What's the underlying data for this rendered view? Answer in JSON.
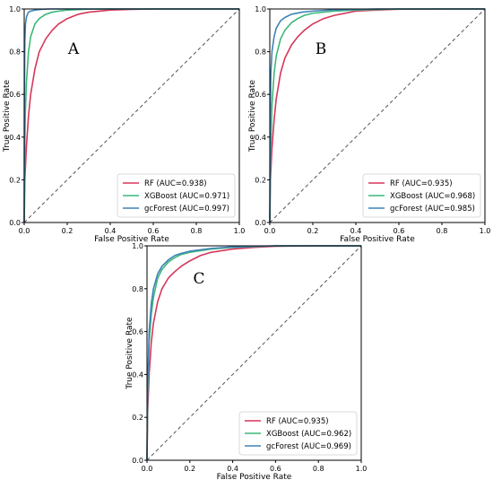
{
  "chart_data": [
    {
      "type": "line",
      "panel_label": "A",
      "xlabel": "False Positive Rate",
      "ylabel": "True Positive Rate",
      "xlim": [
        0,
        1
      ],
      "ylim": [
        0,
        1
      ],
      "xticks": [
        "0.0",
        "0.2",
        "0.4",
        "0.6",
        "0.8",
        "1.0"
      ],
      "yticks": [
        "0.0",
        "0.2",
        "0.4",
        "0.6",
        "0.8",
        "1.0"
      ],
      "legend_placement": "lower-right",
      "grid": false,
      "diagonal": true,
      "series": [
        {
          "name": "RF (AUC=0.938)",
          "color": "#d6365a",
          "x": [
            0,
            0.003,
            0.01,
            0.02,
            0.03,
            0.05,
            0.07,
            0.1,
            0.13,
            0.16,
            0.2,
            0.25,
            0.3,
            0.4,
            0.5,
            0.6,
            0.8,
            1.0
          ],
          "y": [
            0,
            0.2,
            0.35,
            0.5,
            0.6,
            0.72,
            0.8,
            0.86,
            0.9,
            0.93,
            0.955,
            0.975,
            0.985,
            0.995,
            0.998,
            1.0,
            1.0,
            1.0
          ]
        },
        {
          "name": "XGBoost (AUC=0.971)",
          "color": "#3cb77a",
          "x": [
            0,
            0.002,
            0.005,
            0.01,
            0.02,
            0.03,
            0.05,
            0.07,
            0.1,
            0.13,
            0.16,
            0.2,
            0.3,
            0.4,
            0.6,
            1.0
          ],
          "y": [
            0,
            0.3,
            0.5,
            0.65,
            0.8,
            0.87,
            0.93,
            0.955,
            0.975,
            0.985,
            0.99,
            0.995,
            0.999,
            1.0,
            1.0,
            1.0
          ]
        },
        {
          "name": "gcForest (AUC=0.997)",
          "color": "#3f83b8",
          "x": [
            0,
            0.001,
            0.003,
            0.006,
            0.01,
            0.015,
            0.02,
            0.03,
            0.05,
            0.08,
            0.12,
            0.2,
            0.4,
            1.0
          ],
          "y": [
            0,
            0.6,
            0.85,
            0.93,
            0.96,
            0.975,
            0.985,
            0.99,
            0.995,
            0.998,
            1.0,
            1.0,
            1.0,
            1.0
          ]
        }
      ]
    },
    {
      "type": "line",
      "panel_label": "B",
      "xlabel": "False Positive Rate",
      "ylabel": "True Positive Rate",
      "xlim": [
        0,
        1
      ],
      "ylim": [
        0,
        1
      ],
      "xticks": [
        "0.0",
        "0.2",
        "0.4",
        "0.6",
        "0.8",
        "1.0"
      ],
      "yticks": [
        "0.0",
        "0.2",
        "0.4",
        "0.6",
        "0.8",
        "1.0"
      ],
      "legend_placement": "lower-right",
      "grid": false,
      "diagonal": true,
      "series": [
        {
          "name": "RF (AUC=0.935)",
          "color": "#d6365a",
          "x": [
            0,
            0.003,
            0.01,
            0.02,
            0.03,
            0.05,
            0.07,
            0.1,
            0.13,
            0.16,
            0.2,
            0.25,
            0.3,
            0.4,
            0.5,
            0.6,
            0.8,
            1.0
          ],
          "y": [
            0,
            0.2,
            0.35,
            0.48,
            0.58,
            0.7,
            0.77,
            0.83,
            0.87,
            0.9,
            0.93,
            0.955,
            0.97,
            0.99,
            0.995,
            0.999,
            1.0,
            1.0
          ]
        },
        {
          "name": "XGBoost (AUC=0.968)",
          "color": "#3cb77a",
          "x": [
            0,
            0.003,
            0.01,
            0.02,
            0.03,
            0.05,
            0.07,
            0.1,
            0.13,
            0.16,
            0.2,
            0.3,
            0.4,
            0.6,
            1.0
          ],
          "y": [
            0,
            0.3,
            0.55,
            0.7,
            0.78,
            0.86,
            0.9,
            0.935,
            0.955,
            0.97,
            0.98,
            0.99,
            0.995,
            1.0,
            1.0
          ]
        },
        {
          "name": "gcForest (AUC=0.985)",
          "color": "#3f83b8",
          "x": [
            0,
            0.002,
            0.005,
            0.01,
            0.02,
            0.03,
            0.05,
            0.07,
            0.1,
            0.15,
            0.2,
            0.3,
            0.5,
            1.0
          ],
          "y": [
            0,
            0.5,
            0.7,
            0.8,
            0.87,
            0.91,
            0.945,
            0.96,
            0.975,
            0.985,
            0.99,
            0.996,
            1.0,
            1.0
          ]
        }
      ]
    },
    {
      "type": "line",
      "panel_label": "C",
      "xlabel": "False Positive Rate",
      "ylabel": "True Positive Rate",
      "xlim": [
        0,
        1
      ],
      "ylim": [
        0,
        1
      ],
      "xticks": [
        "0.0",
        "0.2",
        "0.4",
        "0.6",
        "0.8",
        "1.0"
      ],
      "yticks": [
        "0.0",
        "0.2",
        "0.4",
        "0.6",
        "0.8",
        "1.0"
      ],
      "legend_placement": "lower-right",
      "grid": false,
      "diagonal": true,
      "series": [
        {
          "name": "RF (AUC=0.935)",
          "color": "#d6365a",
          "x": [
            0,
            0.003,
            0.01,
            0.02,
            0.03,
            0.05,
            0.07,
            0.1,
            0.13,
            0.16,
            0.2,
            0.25,
            0.3,
            0.4,
            0.5,
            0.6,
            0.8,
            1.0
          ],
          "y": [
            0,
            0.22,
            0.4,
            0.55,
            0.64,
            0.74,
            0.8,
            0.85,
            0.88,
            0.905,
            0.93,
            0.955,
            0.97,
            0.985,
            0.993,
            0.998,
            1.0,
            1.0
          ]
        },
        {
          "name": "XGBoost (AUC=0.962)",
          "color": "#3cb77a",
          "x": [
            0,
            0.003,
            0.01,
            0.02,
            0.03,
            0.05,
            0.07,
            0.1,
            0.13,
            0.16,
            0.2,
            0.3,
            0.4,
            0.6,
            1.0
          ],
          "y": [
            0,
            0.3,
            0.55,
            0.68,
            0.76,
            0.85,
            0.89,
            0.925,
            0.945,
            0.96,
            0.97,
            0.985,
            0.993,
            1.0,
            1.0
          ]
        },
        {
          "name": "gcForest (AUC=0.969)",
          "color": "#3f83b8",
          "x": [
            0,
            0.003,
            0.01,
            0.02,
            0.03,
            0.05,
            0.07,
            0.1,
            0.13,
            0.16,
            0.2,
            0.3,
            0.4,
            0.6,
            1.0
          ],
          "y": [
            0,
            0.35,
            0.6,
            0.73,
            0.8,
            0.87,
            0.905,
            0.935,
            0.955,
            0.965,
            0.975,
            0.988,
            0.995,
            1.0,
            1.0
          ]
        }
      ]
    }
  ]
}
